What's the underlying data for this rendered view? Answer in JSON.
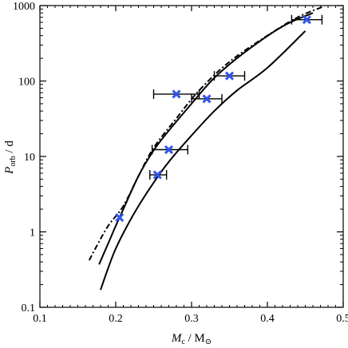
{
  "chart_data": {
    "type": "scatter",
    "xlabel": {
      "main": "M",
      "sub": "c",
      "unit": " / M",
      "unit_sub": "⊙"
    },
    "ylabel": {
      "main": "P",
      "sub": "orb",
      "unit": " / d"
    },
    "xlim": [
      0.1,
      0.5
    ],
    "ylim": [
      0.1,
      1000
    ],
    "yscale": "log",
    "x_ticks": [
      0.1,
      0.2,
      0.3,
      0.4,
      0.5
    ],
    "x_tick_labels": [
      "0.1",
      "0.2",
      "0.3",
      "0.4",
      "0.5"
    ],
    "y_ticks": [
      0.1,
      1,
      10,
      100,
      1000
    ],
    "y_tick_labels": [
      "0.1",
      "1",
      "10",
      "100",
      "1000"
    ],
    "grid": false,
    "legend": "none",
    "marker_color": "#3355ee",
    "points": [
      {
        "x": 0.205,
        "y": 1.55
      },
      {
        "x": 0.255,
        "y": 5.7,
        "xerr": [
          0.245,
          0.267
        ]
      },
      {
        "x": 0.27,
        "y": 12.3,
        "xerr": [
          0.248,
          0.295
        ]
      },
      {
        "x": 0.28,
        "y": 67,
        "xerr": [
          0.25,
          0.31
        ]
      },
      {
        "x": 0.32,
        "y": 58,
        "xerr": [
          0.3,
          0.34
        ]
      },
      {
        "x": 0.35,
        "y": 117,
        "xerr": [
          0.33,
          0.37
        ]
      },
      {
        "x": 0.452,
        "y": 650,
        "xerr": [
          0.432,
          0.472
        ]
      }
    ],
    "curves": [
      {
        "style": "solid",
        "points": [
          [
            0.18,
            0.17
          ],
          [
            0.19,
            0.33
          ],
          [
            0.2,
            0.6
          ],
          [
            0.215,
            1.2
          ],
          [
            0.23,
            2.2
          ],
          [
            0.25,
            4.5
          ],
          [
            0.27,
            8.5
          ],
          [
            0.3,
            19
          ],
          [
            0.33,
            40
          ],
          [
            0.36,
            75
          ],
          [
            0.4,
            150
          ],
          [
            0.45,
            460
          ]
        ]
      },
      {
        "style": "solid",
        "points": [
          [
            0.178,
            0.37
          ],
          [
            0.19,
            0.7
          ],
          [
            0.2,
            1.2
          ],
          [
            0.21,
            2.0
          ],
          [
            0.23,
            5.5
          ],
          [
            0.25,
            12
          ],
          [
            0.27,
            22
          ],
          [
            0.3,
            50
          ],
          [
            0.33,
            110
          ],
          [
            0.37,
            240
          ],
          [
            0.42,
            530
          ],
          [
            0.46,
            800
          ]
        ]
      },
      {
        "style": "dashdot",
        "points": [
          [
            0.165,
            0.42
          ],
          [
            0.175,
            0.65
          ],
          [
            0.19,
            1.2
          ],
          [
            0.21,
            2.2
          ],
          [
            0.23,
            5.5
          ],
          [
            0.25,
            13
          ],
          [
            0.28,
            32
          ],
          [
            0.31,
            75
          ],
          [
            0.35,
            180
          ],
          [
            0.4,
            400
          ],
          [
            0.44,
            700
          ],
          [
            0.475,
            980
          ]
        ]
      }
    ]
  }
}
